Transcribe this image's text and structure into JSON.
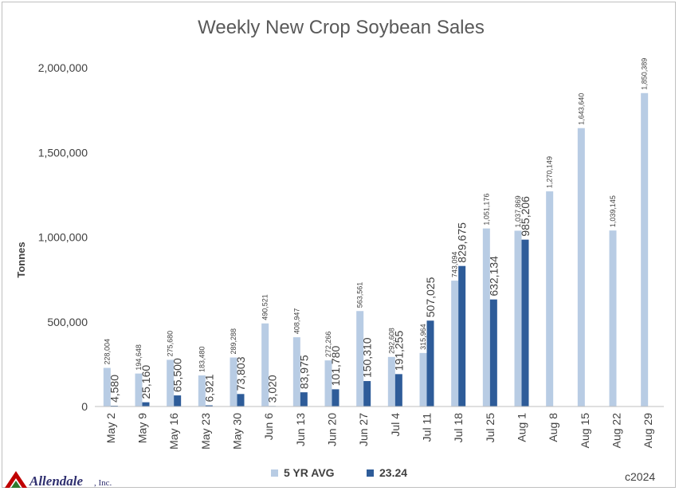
{
  "logo": {
    "brand_name": "Allendale",
    "suffix": ", Inc."
  },
  "footer": {
    "copyright": "c2024"
  },
  "colors": {
    "avg": "#b8cce4",
    "current": "#2e5c99",
    "logo_red": "#c00000",
    "logo_green": "#2f7a2f"
  },
  "chart_data": {
    "type": "bar",
    "title": "Weekly New Crop Soybean Sales",
    "xlabel": "",
    "ylabel": "Tonnes",
    "ylim": [
      0,
      2000000
    ],
    "yticks": [
      0,
      500000,
      1000000,
      1500000,
      2000000
    ],
    "ytick_labels": [
      "0",
      "500,000",
      "1,000,000",
      "1,500,000",
      "2,000,000"
    ],
    "grid": false,
    "legend_position": "bottom",
    "categories": [
      "May 2",
      "May 9",
      "May 16",
      "May 23",
      "May 30",
      "Jun 6",
      "Jun 13",
      "Jun 20",
      "Jun 27",
      "Jul 4",
      "Jul 11",
      "Jul 18",
      "Jul 25",
      "Aug 1",
      "Aug 8",
      "Aug 15",
      "Aug 22",
      "Aug 29"
    ],
    "series": [
      {
        "name": "5 YR AVG",
        "color": "#b8cce4",
        "values": [
          228004,
          194648,
          275680,
          183480,
          289288,
          490521,
          408947,
          272266,
          563561,
          292608,
          315964,
          743094,
          1051176,
          1037869,
          1270149,
          1643640,
          1039145,
          1850389
        ],
        "labels": [
          "228,004",
          "194,648",
          "275,680",
          "183,480",
          "289,288",
          "490,521",
          "408,947",
          "272,266",
          "563,561",
          "292,608",
          "315,964",
          "743,094",
          "1,051,176",
          "1,037,869",
          "1,270,149",
          "1,643,640",
          "1,039,145",
          "1,850,389"
        ]
      },
      {
        "name": "23.24",
        "color": "#2e5c99",
        "values": [
          4580,
          25160,
          65500,
          6921,
          73803,
          3020,
          83975,
          101780,
          150310,
          191255,
          507025,
          829675,
          632134,
          985206,
          null,
          null,
          null,
          null
        ],
        "labels": [
          "4,580",
          "25,160",
          "65,500",
          "6,921",
          "73,803",
          "3,020",
          "83,975",
          "101,780",
          "150,310",
          "191,255",
          "507,025",
          "829,675",
          "632,134",
          "985,206",
          "",
          "",
          "",
          ""
        ]
      }
    ]
  }
}
